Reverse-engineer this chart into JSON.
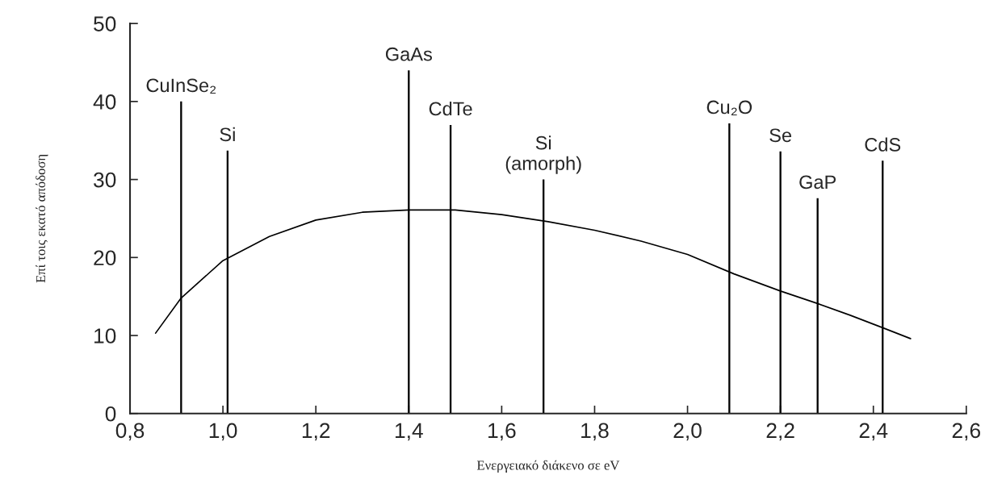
{
  "chart_data": {
    "type": "bar",
    "xlabel": "Ενεργειακό διάκενο σε eV",
    "ylabel": "Επί τοις εκατό απόδοση",
    "series": [
      {
        "x": [
          0.91,
          1.01,
          1.4,
          1.49,
          1.69,
          2.09,
          2.2,
          2.28,
          2.42
        ],
        "values": [
          40,
          33.7,
          44,
          37,
          30,
          37.2,
          33.6,
          27.6,
          32.4
        ],
        "color": "#000000"
      },
      {
        "type": "line",
        "x": [
          0.855,
          0.91,
          1.0,
          1.1,
          1.2,
          1.3,
          1.4,
          1.5,
          1.6,
          1.7,
          1.8,
          1.9,
          2.0,
          2.1,
          2.2,
          2.28,
          2.35,
          2.42,
          2.48
        ],
        "values": [
          10.3,
          14.8,
          19.6,
          22.7,
          24.8,
          25.8,
          26.1,
          26.1,
          25.5,
          24.6,
          23.5,
          22.1,
          20.4,
          17.9,
          15.7,
          14.1,
          12.6,
          11,
          9.6
        ],
        "color": "#000000",
        "line_style": "solid"
      }
    ],
    "annotations": [
      {
        "text": "CuInSe₂",
        "x": 0.91,
        "y": 40
      },
      {
        "text": "Si",
        "x": 1.01,
        "y": 33.7
      },
      {
        "text": "GaAs",
        "x": 1.4,
        "y": 44
      },
      {
        "text": "CdTe",
        "x": 1.49,
        "y": 37
      },
      {
        "text": "Si\n(amorph)",
        "x": 1.69,
        "y": 30
      },
      {
        "text": "Cu₂O",
        "x": 2.09,
        "y": 37.2
      },
      {
        "text": "Se",
        "x": 2.2,
        "y": 33.6
      },
      {
        "text": "GaP",
        "x": 2.28,
        "y": 27.6
      },
      {
        "text": "CdS",
        "x": 2.42,
        "y": 32.4
      }
    ],
    "xlim": [
      0.8,
      2.6
    ],
    "xticks": [
      {
        "value": 0.8,
        "label": "0,8"
      },
      {
        "value": 1.0,
        "label": "1,0"
      },
      {
        "value": 1.2,
        "label": "1,2"
      },
      {
        "value": 1.4,
        "label": "1,4"
      },
      {
        "value": 1.6,
        "label": "1,6"
      },
      {
        "value": 1.8,
        "label": "1,8"
      },
      {
        "value": 2.0,
        "label": "2,0"
      },
      {
        "value": 2.2,
        "label": "2,2"
      },
      {
        "value": 2.4,
        "label": "2,4"
      },
      {
        "value": 2.6,
        "label": "2,6"
      }
    ],
    "ylim": [
      0,
      50
    ],
    "yticks": [
      0,
      10,
      20,
      30,
      40,
      50
    ],
    "grid": false,
    "legend": false
  }
}
